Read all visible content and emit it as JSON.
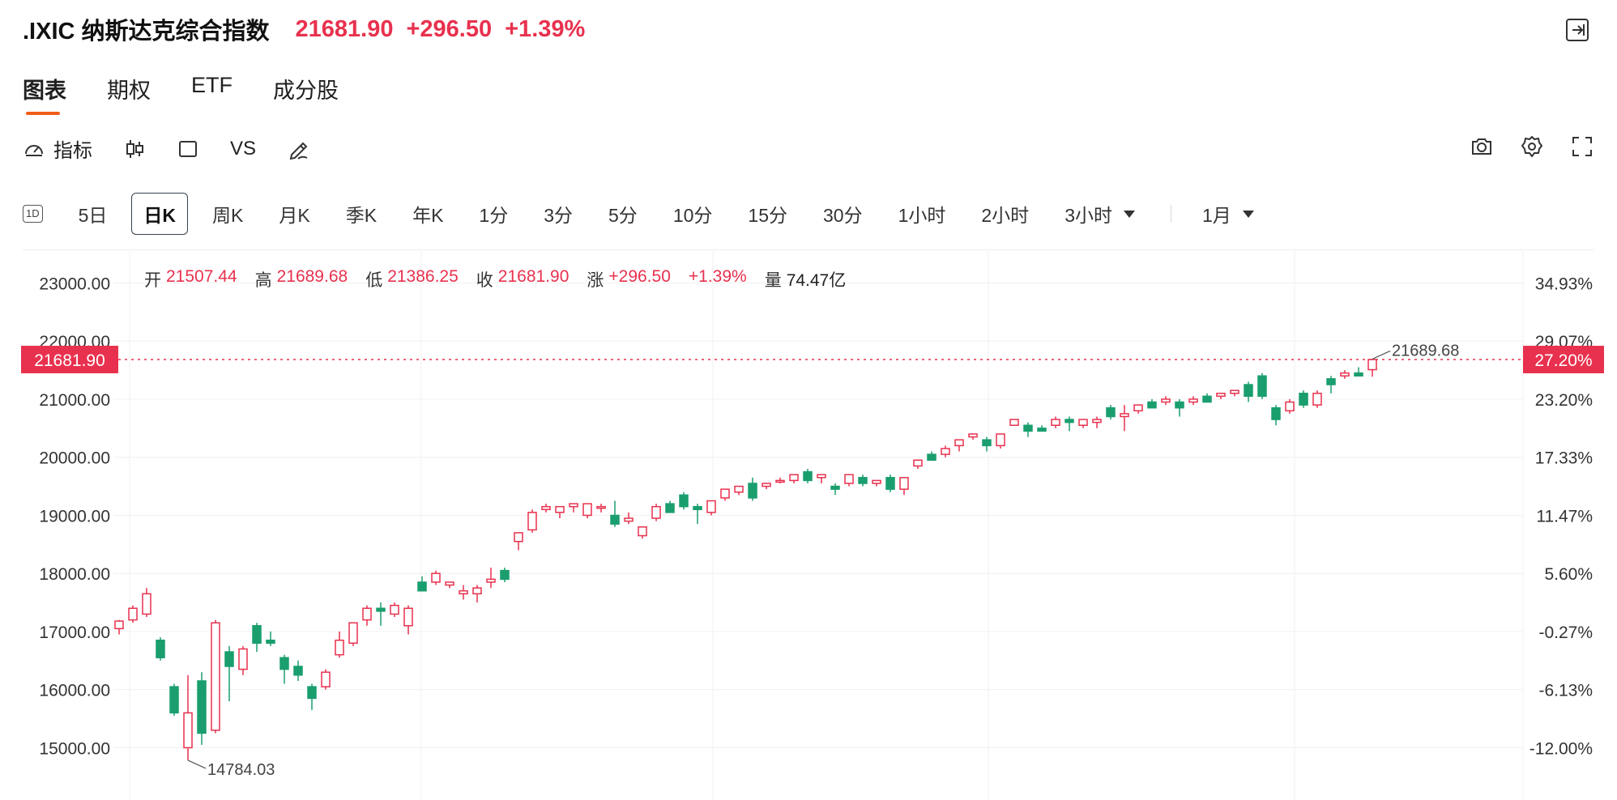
{
  "header": {
    "title": ".IXIC 纳斯达克综合指数",
    "price": "21681.90",
    "change": "+296.50",
    "change_pct": "+1.39%"
  },
  "tabs": [
    {
      "label": "图表",
      "active": true
    },
    {
      "label": "期权",
      "active": false
    },
    {
      "label": "ETF",
      "active": false
    },
    {
      "label": "成分股",
      "active": false
    }
  ],
  "toolbar": {
    "indicator_label": "指标",
    "vs_label": "VS"
  },
  "periods": {
    "badge": "1D",
    "items": [
      "5日",
      "日K",
      "周K",
      "月K",
      "季K",
      "年K",
      "1分",
      "3分",
      "5分",
      "10分",
      "15分",
      "30分",
      "1小时",
      "2小时",
      "3小时"
    ],
    "selected": "日K",
    "range": "1月"
  },
  "ohlc": {
    "open_label": "开",
    "open": "21507.44",
    "high_label": "高",
    "high": "21689.68",
    "low_label": "低",
    "low": "21386.25",
    "close_label": "收",
    "close": "21681.90",
    "chg_label": "涨",
    "chg": "+296.50",
    "chg_pct": "+1.39%",
    "vol_label": "量",
    "vol": "74.47亿"
  },
  "colors": {
    "up": "#e8314e",
    "down": "#1a9e6e",
    "text": "#1f1f1f",
    "grid": "#f0f0f0",
    "accent": "#f25c19"
  },
  "chart_data": {
    "type": "candlestick",
    "y_ticks": [
      "23000.00",
      "22000.00",
      "21000.00",
      "20000.00",
      "19000.00",
      "18000.00",
      "17000.00",
      "16000.00",
      "15000.00"
    ],
    "y_tick_values": [
      23000,
      22000,
      21000,
      20000,
      19000,
      18000,
      17000,
      16000,
      15000
    ],
    "pct_ticks": [
      "34.93%",
      "29.07%",
      "23.20%",
      "17.33%",
      "11.47%",
      "5.60%",
      "-0.27%",
      "-6.13%",
      "-12.00%"
    ],
    "ylim": [
      14100,
      23550
    ],
    "current_price": 21681.9,
    "current_price_label": "21681.90",
    "current_pct_label": "27.20%",
    "max_label": "21689.68",
    "min_label": "14784.03",
    "candles": [
      [
        17050,
        17200,
        16950,
        17180
      ],
      [
        17200,
        17450,
        17150,
        17400
      ],
      [
        17300,
        17750,
        17250,
        17650
      ],
      [
        16850,
        16900,
        16500,
        16550
      ],
      [
        16050,
        16100,
        15550,
        15600
      ],
      [
        15000,
        16250,
        14784.03,
        15600
      ],
      [
        16150,
        16300,
        15050,
        15250
      ],
      [
        15300,
        17200,
        15250,
        17150
      ],
      [
        16650,
        16750,
        15800,
        16400
      ],
      [
        16350,
        16750,
        16250,
        16700
      ],
      [
        17100,
        17150,
        16650,
        16800
      ],
      [
        16850,
        17000,
        16750,
        16800
      ],
      [
        16550,
        16600,
        16100,
        16350
      ],
      [
        16400,
        16500,
        16150,
        16250
      ],
      [
        16050,
        16100,
        15650,
        15850
      ],
      [
        16050,
        16350,
        16000,
        16300
      ],
      [
        16600,
        17000,
        16550,
        16850
      ],
      [
        16800,
        17150,
        16750,
        17150
      ],
      [
        17200,
        17450,
        17100,
        17400
      ],
      [
        17400,
        17500,
        17100,
        17350
      ],
      [
        17300,
        17500,
        17250,
        17450
      ],
      [
        17100,
        17450,
        16950,
        17400
      ],
      [
        17850,
        17950,
        17700,
        17700
      ],
      [
        17850,
        18050,
        17800,
        18000
      ],
      [
        17800,
        17850,
        17750,
        17850
      ],
      [
        17650,
        17800,
        17550,
        17700
      ],
      [
        17650,
        17800,
        17500,
        17750
      ],
      [
        17850,
        18100,
        17750,
        17900
      ],
      [
        18050,
        18100,
        17850,
        17900
      ],
      [
        18550,
        18700,
        18400,
        18700
      ],
      [
        18750,
        19100,
        18700,
        19050
      ],
      [
        19100,
        19200,
        19050,
        19150
      ],
      [
        19050,
        19150,
        18950,
        19150
      ],
      [
        19150,
        19200,
        19050,
        19200
      ],
      [
        19000,
        19200,
        18950,
        19200
      ],
      [
        19150,
        19200,
        19050,
        19150
      ],
      [
        19000,
        19250,
        18800,
        18850
      ],
      [
        18900,
        19050,
        18850,
        18950
      ],
      [
        18650,
        18750,
        18600,
        18800
      ],
      [
        18950,
        19200,
        18900,
        19150
      ],
      [
        19200,
        19250,
        19050,
        19050
      ],
      [
        19350,
        19400,
        19100,
        19150
      ],
      [
        19150,
        19200,
        18850,
        19100
      ],
      [
        19050,
        19250,
        19000,
        19250
      ],
      [
        19300,
        19450,
        19250,
        19450
      ],
      [
        19400,
        19500,
        19350,
        19500
      ],
      [
        19550,
        19650,
        19250,
        19300
      ],
      [
        19500,
        19550,
        19450,
        19550
      ],
      [
        19600,
        19650,
        19550,
        19600
      ],
      [
        19600,
        19700,
        19550,
        19700
      ],
      [
        19750,
        19800,
        19550,
        19600
      ],
      [
        19650,
        19700,
        19550,
        19700
      ],
      [
        19500,
        19550,
        19350,
        19450
      ],
      [
        19550,
        19700,
        19500,
        19700
      ],
      [
        19650,
        19700,
        19500,
        19550
      ],
      [
        19550,
        19600,
        19500,
        19600
      ],
      [
        19650,
        19700,
        19400,
        19450
      ],
      [
        19450,
        19650,
        19350,
        19650
      ],
      [
        19850,
        19950,
        19800,
        19950
      ],
      [
        20050,
        20100,
        19950,
        19950
      ],
      [
        20050,
        20200,
        20000,
        20150
      ],
      [
        20200,
        20300,
        20100,
        20300
      ],
      [
        20350,
        20400,
        20300,
        20400
      ],
      [
        20300,
        20350,
        20100,
        20200
      ],
      [
        20200,
        20400,
        20150,
        20400
      ],
      [
        20550,
        20650,
        20550,
        20650
      ],
      [
        20550,
        20600,
        20350,
        20450
      ],
      [
        20500,
        20550,
        20450,
        20450
      ],
      [
        20550,
        20700,
        20500,
        20650
      ],
      [
        20650,
        20700,
        20450,
        20600
      ],
      [
        20550,
        20650,
        20500,
        20650
      ],
      [
        20600,
        20700,
        20500,
        20650
      ],
      [
        20850,
        20900,
        20650,
        20700
      ],
      [
        20700,
        20900,
        20450,
        20750
      ],
      [
        20800,
        20900,
        20750,
        20900
      ],
      [
        20950,
        21000,
        20850,
        20850
      ],
      [
        20950,
        21050,
        20900,
        21000
      ],
      [
        20950,
        21000,
        20700,
        20850
      ],
      [
        20950,
        21050,
        20900,
        21000
      ],
      [
        21050,
        21100,
        20950,
        20950
      ],
      [
        21050,
        21100,
        21000,
        21100
      ],
      [
        21100,
        21150,
        21050,
        21150
      ],
      [
        21250,
        21300,
        20950,
        21050
      ],
      [
        21400,
        21450,
        21000,
        21050
      ],
      [
        20850,
        20900,
        20550,
        20650
      ],
      [
        20800,
        21000,
        20750,
        20950
      ],
      [
        21100,
        21150,
        20850,
        20900
      ],
      [
        20900,
        21150,
        20850,
        21100
      ],
      [
        21350,
        21400,
        21100,
        21250
      ],
      [
        21400,
        21500,
        21350,
        21450
      ],
      [
        21450,
        21550,
        21400,
        21400
      ],
      [
        21507.44,
        21689.68,
        21386.25,
        21681.9
      ]
    ]
  }
}
